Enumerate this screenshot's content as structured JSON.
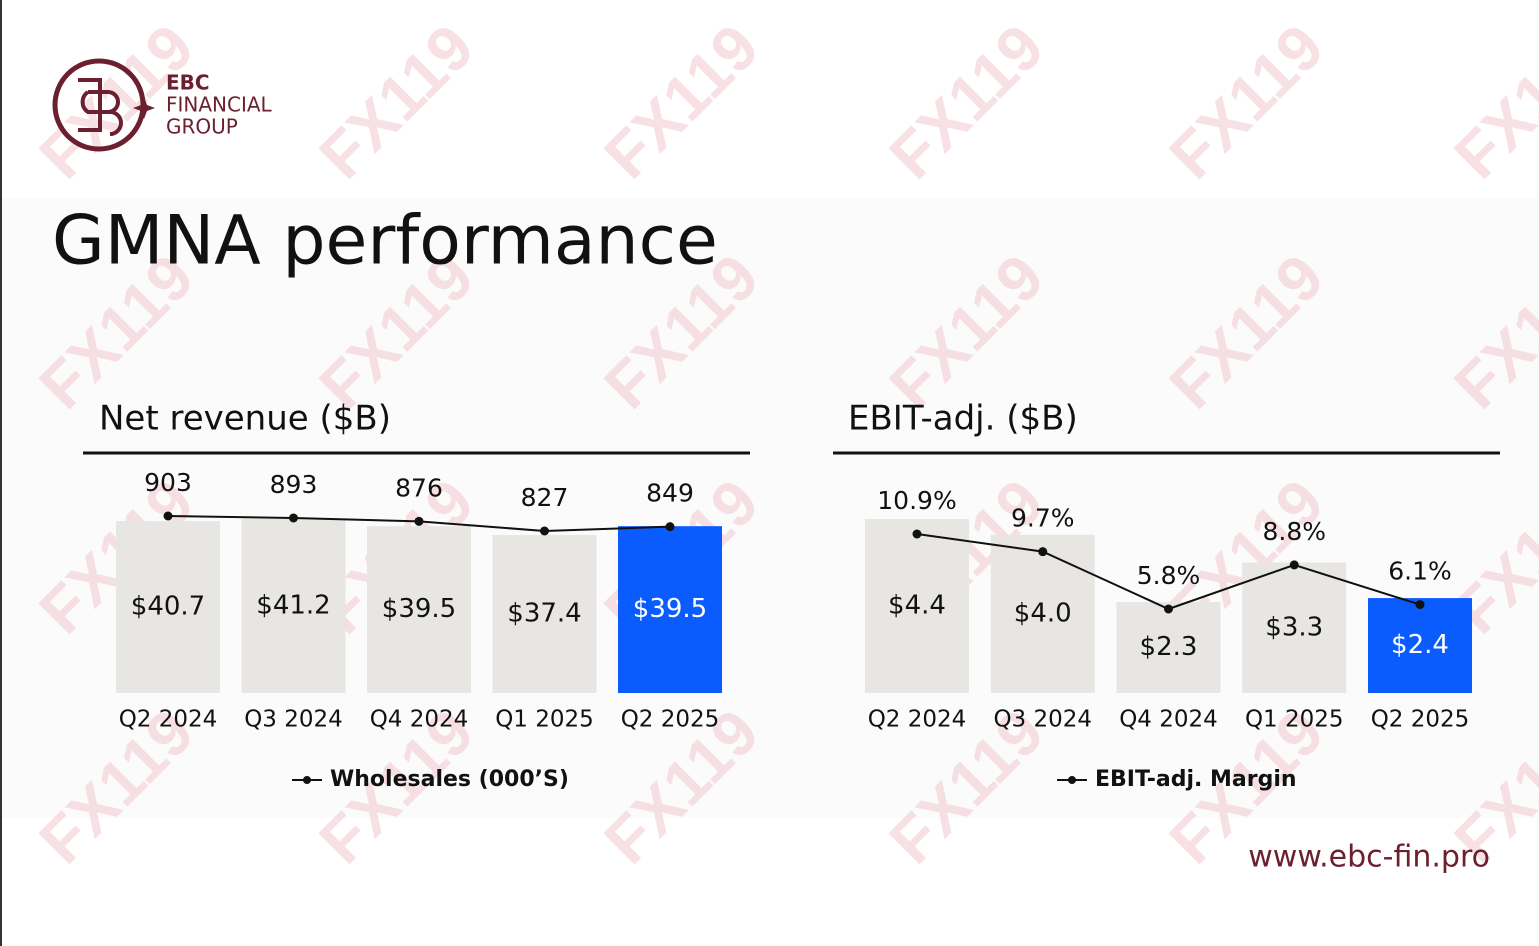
{
  "logo": {
    "name": "EBC",
    "line1": "FINANCIAL",
    "line2": "GROUP"
  },
  "title": "GMNA performance",
  "watermark": "FX119",
  "website": "www.ebc-fin.pro",
  "chart_data": [
    {
      "type": "bar",
      "title": "Net revenue ($B)",
      "categories": [
        "Q2 2024",
        "Q3 2024",
        "Q4 2024",
        "Q1 2025",
        "Q2 2025"
      ],
      "values": [
        40.7,
        41.2,
        39.5,
        37.4,
        39.5
      ],
      "value_labels": [
        "$40.7",
        "$41.2",
        "$39.5",
        "$37.4",
        "$39.5"
      ],
      "colors": [
        "#e8e6e3",
        "#e8e6e3",
        "#e8e6e3",
        "#e8e6e3",
        "#0a5cff"
      ],
      "series": [
        {
          "name": "Wholesales (000’S)",
          "color": "#111111",
          "values": [
            903,
            893,
            876,
            827,
            849
          ]
        }
      ]
    },
    {
      "type": "bar",
      "title": "EBIT-adj. ($B)",
      "categories": [
        "Q2 2024",
        "Q3 2024",
        "Q4 2024",
        "Q1 2025",
        "Q2 2025"
      ],
      "values": [
        4.4,
        4.0,
        2.3,
        3.3,
        2.4
      ],
      "value_labels": [
        "$4.4",
        "$4.0",
        "$2.3",
        "$3.3",
        "$2.4"
      ],
      "colors": [
        "#e8e6e3",
        "#e8e6e3",
        "#e8e6e3",
        "#e8e6e3",
        "#0a5cff"
      ],
      "series": [
        {
          "name": "EBIT-adj. Margin",
          "color": "#111111",
          "values": [
            10.9,
            9.7,
            5.8,
            8.8,
            6.1
          ],
          "value_labels": [
            "10.9%",
            "9.7%",
            "5.8%",
            "8.8%",
            "6.1%"
          ]
        }
      ]
    }
  ]
}
